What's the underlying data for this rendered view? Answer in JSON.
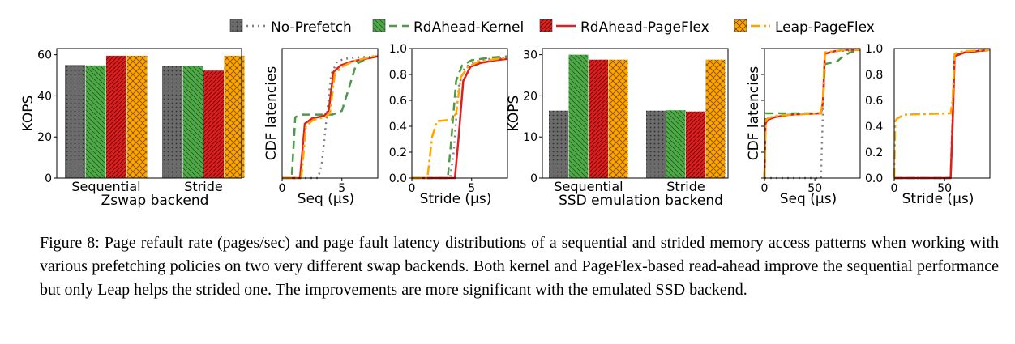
{
  "legend": [
    {
      "label": "No-Prefetch",
      "color": "#6b6b6b",
      "line": "#808080",
      "dash": "2 5",
      "hatch": "dots"
    },
    {
      "label": "RdAhead-Kernel",
      "color": "#4daa46",
      "line": "#4d9a46",
      "dash": "10 6",
      "hatch": "back"
    },
    {
      "label": "RdAhead-PageFlex",
      "color": "#dc1f1f",
      "line": "#dc1f1f",
      "dash": "",
      "hatch": "fwd"
    },
    {
      "label": "Leap-PageFlex",
      "color": "#ffa500",
      "line": "#ffa500",
      "dash": "12 4 3 4",
      "hatch": "cross"
    }
  ],
  "caption": "Figure 8: Page refault rate (pages/sec) and page fault latency distributions of a sequential and strided memory access patterns when working with various prefetching policies on two very different swap backends. Both kernel and PageFlex-based read-ahead improve the sequential performance but only Leap helps the strided one. The improvements are more significant with the emulated SSD backend.",
  "chart_data": [
    {
      "type": "bar",
      "title": "",
      "xlabel": "Zswap backend",
      "ylabel": "KOPS",
      "categories": [
        "Sequential",
        "Stride"
      ],
      "ylim": [
        0,
        63
      ],
      "yticks": [
        0,
        20,
        40,
        60
      ],
      "series": [
        {
          "name": "No-Prefetch",
          "values": [
            55,
            54.5
          ]
        },
        {
          "name": "RdAhead-Kernel",
          "values": [
            54.8,
            54.4
          ]
        },
        {
          "name": "RdAhead-PageFlex",
          "values": [
            59.5,
            52.3
          ]
        },
        {
          "name": "Leap-PageFlex",
          "values": [
            59.5,
            59.5
          ]
        }
      ]
    },
    {
      "type": "line",
      "xlabel": "Seq (μs)",
      "ylabel": "CDF latencies",
      "xlim": [
        0,
        8
      ],
      "ylim": [
        0,
        1.0
      ],
      "xticks": [
        0,
        5
      ],
      "yticks": [
        0.0,
        0.2,
        0.4,
        0.6,
        0.8,
        1.0
      ],
      "series": [
        {
          "name": "No-Prefetch",
          "x": [
            0,
            3.0,
            3.3,
            3.7,
            4.1,
            4.6,
            5.2,
            6,
            8
          ],
          "y": [
            0,
            0,
            0.1,
            0.45,
            0.8,
            0.9,
            0.92,
            0.93,
            0.94
          ]
        },
        {
          "name": "RdAhead-Kernel",
          "x": [
            0,
            0.8,
            1.1,
            1.6,
            4.2,
            5.0,
            5.6,
            6.2,
            7,
            8
          ],
          "y": [
            0,
            0,
            0.47,
            0.49,
            0.49,
            0.52,
            0.7,
            0.88,
            0.92,
            0.94
          ]
        },
        {
          "name": "RdAhead-PageFlex",
          "x": [
            0,
            1.5,
            1.9,
            2.5,
            3.5,
            3.9,
            4.3,
            4.9,
            5.8,
            8
          ],
          "y": [
            0,
            0,
            0.42,
            0.46,
            0.48,
            0.52,
            0.82,
            0.87,
            0.9,
            0.94
          ]
        },
        {
          "name": "Leap-PageFlex",
          "x": [
            0,
            1.6,
            2.0,
            2.6,
            3.6,
            4.0,
            4.4,
            5.0,
            5.9,
            8
          ],
          "y": [
            0,
            0,
            0.4,
            0.45,
            0.47,
            0.5,
            0.8,
            0.86,
            0.9,
            0.95
          ]
        }
      ]
    },
    {
      "type": "line",
      "xlabel": "Stride (μs)",
      "ylabel": "",
      "xlim": [
        0,
        8
      ],
      "ylim": [
        0,
        1.0
      ],
      "xticks": [
        0,
        5
      ],
      "yticks": [
        0.0,
        0.2,
        0.4,
        0.6,
        0.8,
        1.0
      ],
      "series": [
        {
          "name": "No-Prefetch",
          "x": [
            0,
            3.2,
            3.5,
            3.9,
            4.4,
            5.2,
            6.5,
            8
          ],
          "y": [
            0,
            0,
            0.2,
            0.7,
            0.85,
            0.9,
            0.92,
            0.93
          ]
        },
        {
          "name": "RdAhead-Kernel",
          "x": [
            0,
            3.0,
            3.3,
            3.7,
            4.2,
            5.0,
            6.5,
            8
          ],
          "y": [
            0,
            0,
            0.3,
            0.75,
            0.87,
            0.91,
            0.93,
            0.94
          ]
        },
        {
          "name": "RdAhead-PageFlex",
          "x": [
            0,
            3.6,
            3.9,
            4.3,
            4.9,
            5.8,
            7,
            8
          ],
          "y": [
            0,
            0,
            0.3,
            0.75,
            0.86,
            0.89,
            0.91,
            0.92
          ]
        },
        {
          "name": "Leap-PageFlex",
          "x": [
            0,
            1.3,
            1.7,
            2.1,
            3.3,
            3.7,
            4.1,
            4.7,
            5.6,
            8
          ],
          "y": [
            0,
            0,
            0.32,
            0.44,
            0.45,
            0.5,
            0.78,
            0.86,
            0.9,
            0.93
          ]
        }
      ]
    },
    {
      "type": "bar",
      "title": "",
      "xlabel": "SSD emulation backend",
      "ylabel": "KOPS",
      "categories": [
        "Sequential",
        "Stride"
      ],
      "ylim": [
        0,
        31.5
      ],
      "yticks": [
        0,
        10,
        20,
        30
      ],
      "series": [
        {
          "name": "No-Prefetch",
          "values": [
            16.4,
            16.4
          ]
        },
        {
          "name": "RdAhead-Kernel",
          "values": [
            30,
            16.5
          ]
        },
        {
          "name": "RdAhead-PageFlex",
          "values": [
            28.8,
            16.2
          ]
        },
        {
          "name": "Leap-PageFlex",
          "values": [
            28.8,
            28.8
          ]
        }
      ]
    },
    {
      "type": "line",
      "xlabel": "Seq (μs)",
      "ylabel": "CDF latencies",
      "xlim": [
        0,
        95
      ],
      "ylim": [
        0,
        1.0
      ],
      "xticks": [
        0,
        50
      ],
      "yticks": [
        0.0,
        0.2,
        0.4,
        0.6,
        0.8,
        1.0
      ],
      "series": [
        {
          "name": "No-Prefetch",
          "x": [
            0,
            56,
            58,
            60,
            70,
            95
          ],
          "y": [
            0,
            0,
            0.5,
            0.96,
            0.98,
            0.99
          ]
        },
        {
          "name": "RdAhead-Kernel",
          "x": [
            0,
            1,
            10,
            56,
            58,
            60,
            72,
            78,
            85,
            95
          ],
          "y": [
            0,
            0.5,
            0.5,
            0.5,
            0.55,
            0.88,
            0.9,
            0.94,
            0.97,
            0.99
          ]
        },
        {
          "name": "RdAhead-PageFlex",
          "x": [
            0,
            1,
            3,
            10,
            25,
            56,
            58,
            60,
            70,
            80,
            95
          ],
          "y": [
            0,
            0.42,
            0.45,
            0.47,
            0.49,
            0.5,
            0.58,
            0.96,
            0.98,
            0.99,
            0.99
          ]
        },
        {
          "name": "Leap-PageFlex",
          "x": [
            0,
            1,
            3,
            10,
            25,
            56,
            58,
            60,
            70,
            80,
            95
          ],
          "y": [
            0,
            0.44,
            0.46,
            0.48,
            0.49,
            0.5,
            0.6,
            0.97,
            0.98,
            0.99,
            0.99
          ]
        }
      ]
    },
    {
      "type": "line",
      "xlabel": "Stride (μs)",
      "ylabel": "",
      "xlim": [
        0,
        95
      ],
      "ylim": [
        0,
        1.0
      ],
      "xticks": [
        0,
        50
      ],
      "yticks": [
        0.0,
        0.2,
        0.4,
        0.6,
        0.8,
        1.0
      ],
      "series": [
        {
          "name": "No-Prefetch",
          "x": [
            0,
            56,
            58,
            60,
            70,
            95
          ],
          "y": [
            0,
            0,
            0.5,
            0.96,
            0.98,
            0.99
          ]
        },
        {
          "name": "RdAhead-Kernel",
          "x": [
            0,
            56,
            58,
            60,
            70,
            95
          ],
          "y": [
            0,
            0,
            0.45,
            0.95,
            0.97,
            0.99
          ]
        },
        {
          "name": "RdAhead-PageFlex",
          "x": [
            0,
            56,
            58,
            60,
            70,
            95
          ],
          "y": [
            0,
            0,
            0.4,
            0.94,
            0.97,
            0.99
          ]
        },
        {
          "name": "Leap-PageFlex",
          "x": [
            0,
            1,
            3,
            10,
            56,
            58,
            60,
            70,
            95
          ],
          "y": [
            0,
            0.44,
            0.46,
            0.49,
            0.5,
            0.6,
            0.96,
            0.98,
            0.99
          ]
        }
      ]
    }
  ]
}
